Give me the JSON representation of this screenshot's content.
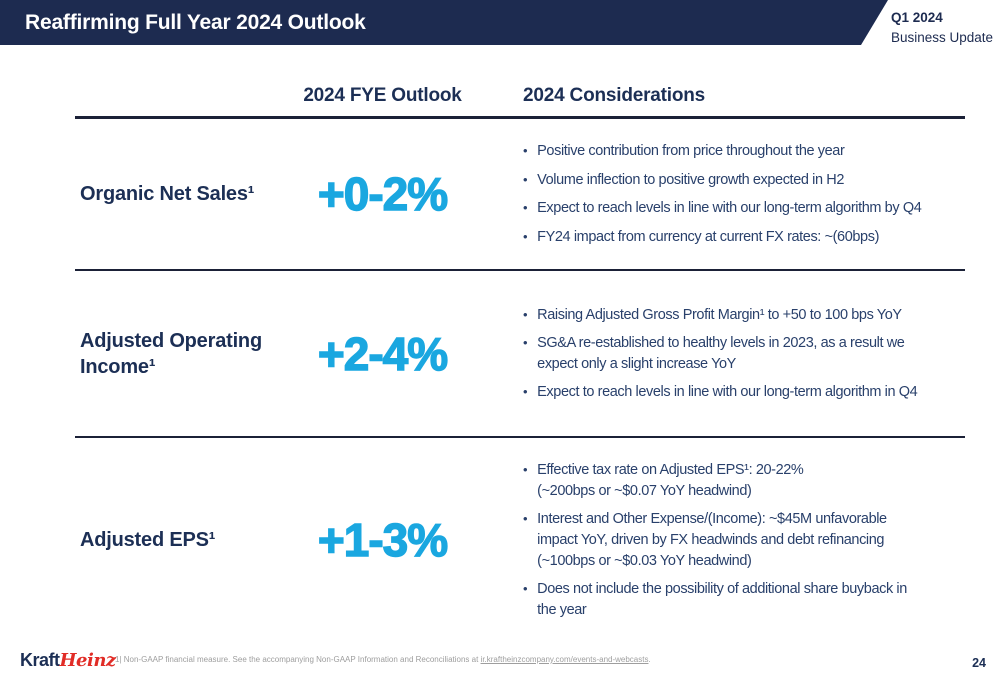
{
  "slide": {
    "title": "Reaffirming Full Year 2024 Outlook",
    "tag": {
      "line1": "Q1 2024",
      "line2": "Business Update"
    },
    "page_number": "24"
  },
  "table": {
    "headers": {
      "outlook": "2024 FYE Outlook",
      "considerations": "2024 Considerations"
    },
    "rows": [
      {
        "label": "Organic Net Sales¹",
        "outlook": "+0-2%",
        "bullets": [
          "Positive contribution from price throughout the year",
          "Volume inflection to positive growth expected in H2",
          "Expect to reach levels in line with our long-term algorithm by Q4",
          "FY24 impact from currency at current FX rates: ~(60bps)"
        ]
      },
      {
        "label": "Adjusted Operating Income¹",
        "outlook": "+2-4%",
        "bullets": [
          "Raising Adjusted Gross Profit Margin¹ to +50 to 100 bps YoY",
          "SG&A re-established to healthy levels in 2023, as a result we\nexpect only a slight increase YoY",
          "Expect to reach levels in line with our long-term algorithm in Q4"
        ]
      },
      {
        "label": "Adjusted EPS¹",
        "outlook": "+1-3%",
        "bullets": [
          "Effective tax rate on Adjusted EPS¹: 20-22%\n(~200bps or ~$0.07 YoY headwind)",
          "Interest and Other Expense/(Income): ~$45M unfavorable\nimpact YoY, driven by FX headwinds and debt refinancing\n(~100bps or ~$0.03 YoY headwind)",
          "Does not include the possibility of additional share buyback in\nthe year"
        ]
      }
    ]
  },
  "footer": {
    "logo": {
      "kraft": "Kraft",
      "heinz": "Heinz"
    },
    "footnote": {
      "prefix": "1| Non-GAAP financial measure. See the accompanying Non-GAAP Information and Reconciliations at ",
      "link": "ir.kraftheinzcompany.com/events-and-webcasts",
      "suffix": "."
    }
  },
  "colors": {
    "banner_navy": "#1d2b50",
    "text_navy": "#1c2f55",
    "bullet_navy": "#29406b",
    "accent_cyan": "#1aa7e0",
    "heinz_red": "#e12c26",
    "footnote_gray": "#9e9e9e",
    "line_dark": "#1b2137"
  }
}
